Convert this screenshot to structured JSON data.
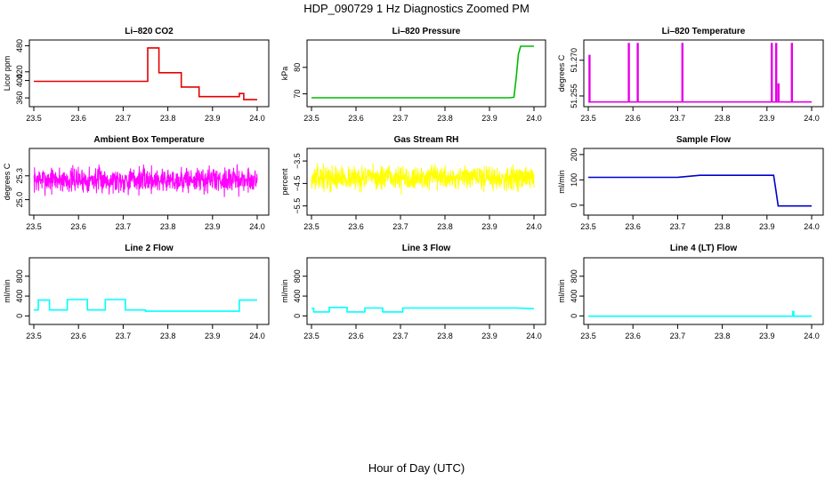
{
  "figure": {
    "title": "HDP_090729  1 Hz Diagnostics Zoomed PM",
    "xlabel": "Hour of Day (UTC)"
  },
  "chart_data": [
    {
      "type": "line",
      "title": "Li–820 CO2",
      "ylabel": "Licor ppm",
      "color": "#e60000",
      "xlim": [
        23.5,
        24.0
      ],
      "ylim": [
        348,
        485
      ],
      "xticks": [
        "23.5",
        "23.6",
        "23.7",
        "23.8",
        "23.9",
        "24.0"
      ],
      "yticks": [
        {
          "v": 360,
          "label": "360"
        },
        {
          "v": 400,
          "label": "400"
        },
        {
          "v": 420,
          "label": "420"
        },
        {
          "v": 480,
          "label": "480"
        }
      ],
      "style": "step",
      "x": [
        23.5,
        23.755,
        23.755,
        23.78,
        23.78,
        23.83,
        23.83,
        23.87,
        23.87,
        23.96,
        23.96,
        23.97,
        23.97,
        24.0
      ],
      "y": [
        398,
        398,
        475,
        475,
        418,
        418,
        385,
        385,
        363,
        363,
        370,
        370,
        356,
        356
      ]
    },
    {
      "type": "line",
      "title": "Li–820 Pressure",
      "ylabel": "kPa",
      "color": "#00bb00",
      "xlim": [
        23.5,
        24.0
      ],
      "ylim": [
        66.5,
        89
      ],
      "xticks": [
        "23.5",
        "23.6",
        "23.7",
        "23.8",
        "23.9",
        "24.0"
      ],
      "yticks": [
        {
          "v": 70,
          "label": "70"
        },
        {
          "v": 80,
          "label": "80"
        }
      ],
      "style": "step",
      "x": [
        23.5,
        23.945,
        23.955,
        23.96,
        23.965,
        23.97,
        24.0
      ],
      "y": [
        68.5,
        68.5,
        68.7,
        76,
        85,
        88,
        88
      ]
    },
    {
      "type": "line",
      "title": "Li–820 Temperature",
      "ylabel": "degrees C",
      "color": "#e600e6",
      "xlim": [
        23.5,
        24.0
      ],
      "ylim": [
        51.252,
        51.277
      ],
      "xticks": [
        "23.5",
        "23.6",
        "23.7",
        "23.8",
        "23.9",
        "24.0"
      ],
      "yticks": [
        {
          "v": 51.255,
          "label": "51.255"
        },
        {
          "v": 51.27,
          "label": "51.270"
        }
      ],
      "style": "spikes",
      "baseline": 51.2525,
      "spikes": [
        [
          23.502,
          51.272
        ],
        [
          23.59,
          51.277
        ],
        [
          23.61,
          51.277
        ],
        [
          23.71,
          51.277
        ],
        [
          23.91,
          51.277
        ],
        [
          23.92,
          51.277
        ],
        [
          23.925,
          51.26
        ],
        [
          23.955,
          51.277
        ]
      ]
    },
    {
      "type": "line",
      "title": "Ambient Box Temperature",
      "ylabel": "degrees C",
      "color": "#ff00ff",
      "xlim": [
        23.5,
        24.0
      ],
      "ylim": [
        24.85,
        25.6
      ],
      "xticks": [
        "23.5",
        "23.6",
        "23.7",
        "23.8",
        "23.9",
        "24.0"
      ],
      "yticks": [
        {
          "v": 25.0,
          "label": "25.0"
        },
        {
          "v": 25.3,
          "label": "25.3"
        }
      ],
      "style": "noise",
      "center": 25.25,
      "amp": 0.17,
      "n": 900,
      "seed": 7
    },
    {
      "type": "line",
      "title": "Gas Stream RH",
      "ylabel": "percent",
      "color": "#ffff00",
      "xlim": [
        23.5,
        24.0
      ],
      "ylim": [
        -5.75,
        -3.1
      ],
      "xticks": [
        "23.5",
        "23.6",
        "23.7",
        "23.8",
        "23.9",
        "24.0"
      ],
      "yticks": [
        {
          "v": -5.5,
          "label": "−5.5"
        },
        {
          "v": -4.5,
          "label": "−4.5"
        },
        {
          "v": -3.5,
          "label": "−3.5"
        }
      ],
      "style": "noise",
      "center": -4.25,
      "amp": 0.55,
      "n": 900,
      "seed": 13
    },
    {
      "type": "line",
      "title": "Sample Flow",
      "ylabel": "ml/min",
      "color": "#0000cc",
      "xlim": [
        23.5,
        24.0
      ],
      "ylim": [
        -25,
        210
      ],
      "xticks": [
        "23.5",
        "23.6",
        "23.7",
        "23.8",
        "23.9",
        "24.0"
      ],
      "yticks": [
        {
          "v": 0,
          "label": "0"
        },
        {
          "v": 100,
          "label": "100"
        },
        {
          "v": 200,
          "label": "200"
        }
      ],
      "style": "step",
      "x": [
        23.5,
        23.65,
        23.7,
        23.75,
        23.915,
        23.92,
        23.925,
        24.0
      ],
      "y": [
        110,
        110,
        110,
        118,
        118,
        60,
        -3,
        -3
      ]
    },
    {
      "type": "line",
      "title": "Line 2 Flow",
      "ylabel": "ml/min",
      "color": "#00ffff",
      "xlim": [
        23.5,
        24.0
      ],
      "ylim": [
        -100,
        1100
      ],
      "xticks": [
        "23.5",
        "23.6",
        "23.7",
        "23.8",
        "23.9",
        "24.0"
      ],
      "yticks": [
        {
          "v": 0,
          "label": "0"
        },
        {
          "v": 400,
          "label": "400"
        },
        {
          "v": 800,
          "label": "800"
        }
      ],
      "style": "step",
      "x": [
        23.5,
        23.51,
        23.51,
        23.535,
        23.535,
        23.575,
        23.575,
        23.62,
        23.62,
        23.66,
        23.66,
        23.705,
        23.705,
        23.75,
        23.75,
        23.96,
        23.96,
        24.0
      ],
      "y": [
        120,
        120,
        320,
        320,
        120,
        120,
        330,
        330,
        120,
        120,
        330,
        330,
        120,
        120,
        95,
        95,
        320,
        320
      ]
    },
    {
      "type": "line",
      "title": "Line 3 Flow",
      "ylabel": "ml/min",
      "color": "#00ffff",
      "xlim": [
        23.5,
        24.0
      ],
      "ylim": [
        -100,
        1100
      ],
      "xticks": [
        "23.5",
        "23.6",
        "23.7",
        "23.8",
        "23.9",
        "24.0"
      ],
      "yticks": [
        {
          "v": 0,
          "label": "0"
        },
        {
          "v": 400,
          "label": "400"
        },
        {
          "v": 800,
          "label": "800"
        }
      ],
      "style": "step",
      "x": [
        23.5,
        23.505,
        23.505,
        23.54,
        23.54,
        23.58,
        23.58,
        23.62,
        23.62,
        23.66,
        23.66,
        23.705,
        23.705,
        23.96,
        24.0
      ],
      "y": [
        150,
        150,
        80,
        80,
        170,
        170,
        80,
        80,
        160,
        160,
        80,
        80,
        160,
        160,
        145
      ]
    },
    {
      "type": "line",
      "title": "Line 4 (LT) Flow",
      "ylabel": "ml/min",
      "color": "#00ffff",
      "xlim": [
        23.5,
        24.0
      ],
      "ylim": [
        -100,
        1100
      ],
      "xticks": [
        "23.5",
        "23.6",
        "23.7",
        "23.8",
        "23.9",
        "24.0"
      ],
      "yticks": [
        {
          "v": 0,
          "label": "0"
        },
        {
          "v": 400,
          "label": "400"
        },
        {
          "v": 800,
          "label": "800"
        }
      ],
      "style": "step",
      "x": [
        23.5,
        23.958,
        23.958,
        23.96,
        23.96,
        24.0
      ],
      "y": [
        -5,
        -5,
        90,
        90,
        -5,
        -5
      ]
    }
  ]
}
